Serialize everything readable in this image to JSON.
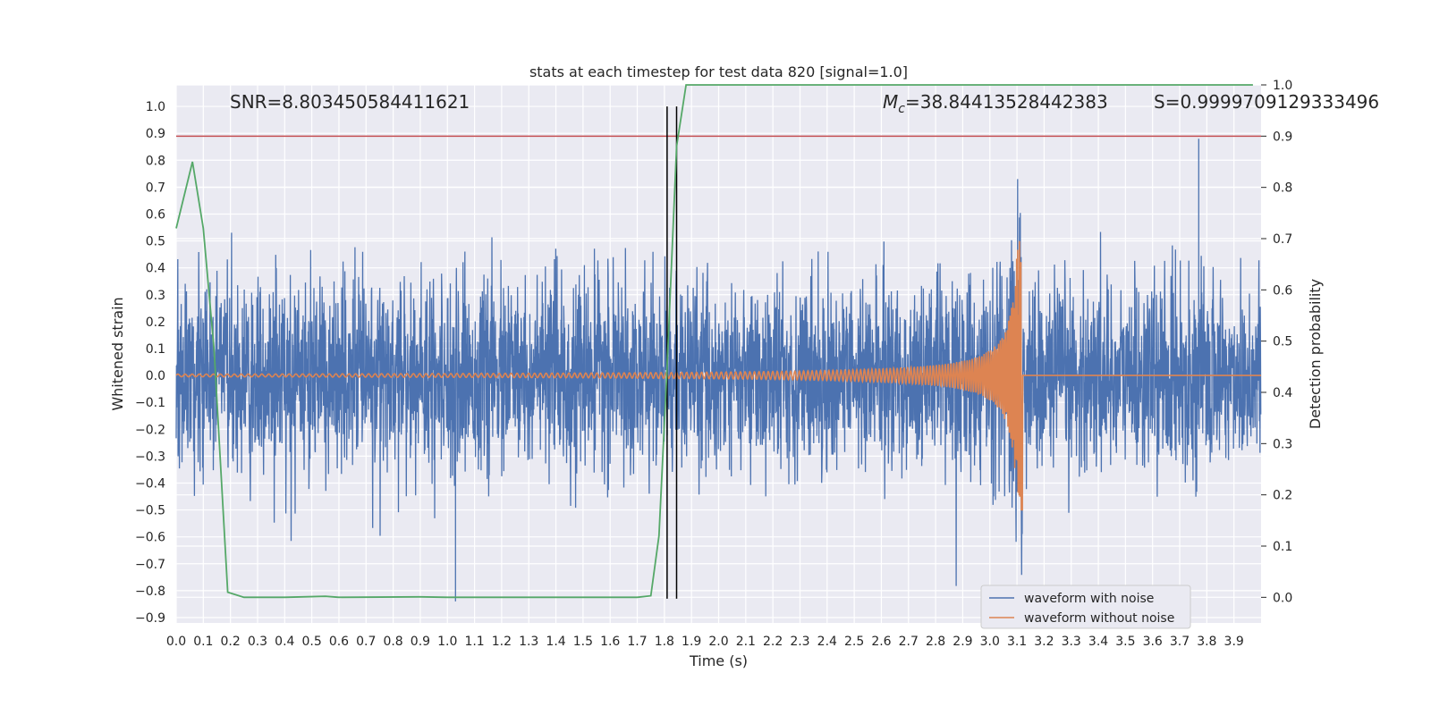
{
  "chart_data": {
    "type": "line",
    "title": "stats at each timestep for test data 820 [signal=1.0]",
    "xlabel": "Time (s)",
    "ylabel": "Whitened strain",
    "y2label": "Detection probability",
    "xlim": [
      0.0,
      4.0
    ],
    "ylim": [
      -0.92,
      1.08
    ],
    "y2lim": [
      -0.05,
      1.0
    ],
    "grid": true,
    "legend_position": "lower-right",
    "xticks": [
      "0.0",
      "0.1",
      "0.2",
      "0.3",
      "0.4",
      "0.5",
      "0.6",
      "0.7",
      "0.8",
      "0.9",
      "1.0",
      "1.1",
      "1.2",
      "1.3",
      "1.4",
      "1.5",
      "1.6",
      "1.7",
      "1.8",
      "1.9",
      "2.0",
      "2.1",
      "2.2",
      "2.3",
      "2.4",
      "2.5",
      "2.6",
      "2.7",
      "2.8",
      "2.9",
      "3.0",
      "3.1",
      "3.2",
      "3.3",
      "3.4",
      "3.5",
      "3.6",
      "3.7",
      "3.8",
      "3.9"
    ],
    "yticks": [
      "1.0",
      "0.9",
      "0.8",
      "0.7",
      "0.6",
      "0.5",
      "0.4",
      "0.3",
      "0.2",
      "0.1",
      "0.0",
      "−0.1",
      "−0.2",
      "−0.3",
      "−0.4",
      "−0.5",
      "−0.6",
      "−0.7",
      "−0.8",
      "−0.9"
    ],
    "y2ticks": [
      "1.0",
      "0.9",
      "0.8",
      "0.7",
      "0.6",
      "0.5",
      "0.4",
      "0.3",
      "0.2",
      "0.1",
      "0.0"
    ],
    "annotations": {
      "snr": "SNR=8.803450584411621",
      "mc": "=38.84413528442383",
      "mc_symbol": "M",
      "mc_sub": "c",
      "s": "S=0.9999709129333496"
    },
    "vlines_x": [
      1.81,
      1.845
    ],
    "threshold_y2": 0.9,
    "series": [
      {
        "name": "waveform with noise",
        "color": "#4c72b0",
        "description_values": "dense Gaussian-like noise, amplitude mostly within ±0.5, extremes about 0.88 at 3.77 s and -0.84 at 1.03 s"
      },
      {
        "name": "waveform without noise",
        "color": "#dd8452",
        "chirp": {
          "start": 0.0,
          "merger": 3.12,
          "amp_start": 0.005,
          "amp_peak": 0.5
        }
      },
      {
        "axis": "right",
        "color": "#55a868",
        "x": [
          0.0,
          0.06,
          0.1,
          0.14,
          0.19,
          0.25,
          0.4,
          0.55,
          0.6,
          0.9,
          1.0,
          1.7,
          1.75,
          1.78,
          1.81,
          1.845,
          1.88,
          3.97
        ],
        "y": [
          0.72,
          0.85,
          0.72,
          0.48,
          0.01,
          0.0,
          0.0,
          0.002,
          0.0,
          0.001,
          0.0,
          0.0,
          0.003,
          0.12,
          0.45,
          0.88,
          1.0,
          1.0
        ]
      }
    ],
    "threshold_color": "#c44e52"
  }
}
